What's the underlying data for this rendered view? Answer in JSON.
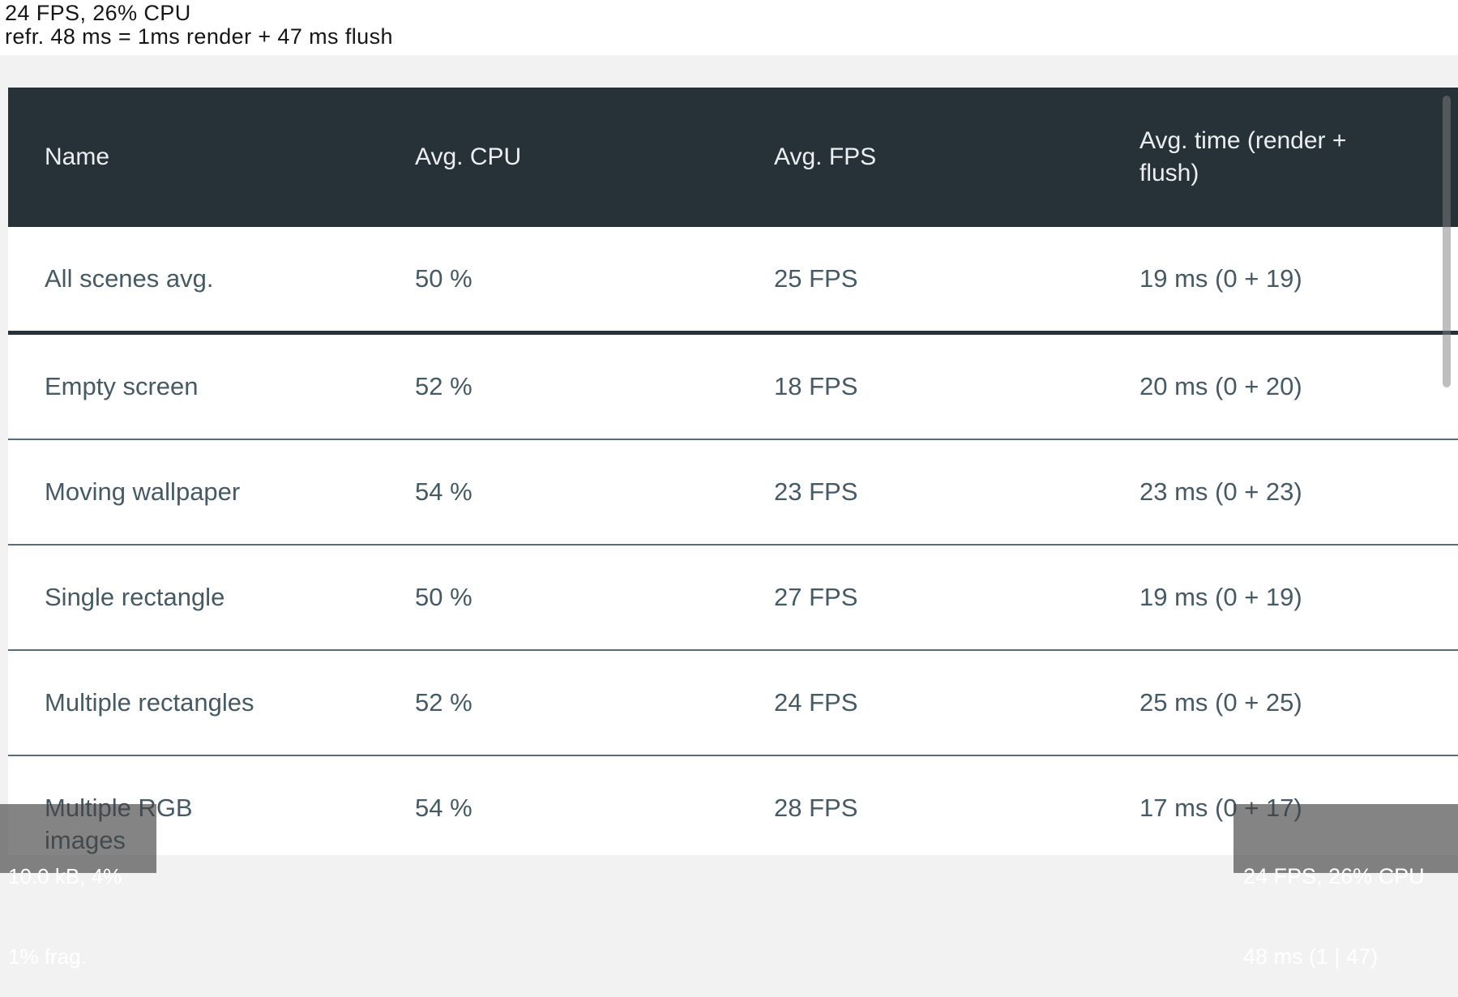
{
  "colors": {
    "page_bg": "#f2f2f2",
    "top_band_bg": "#ffffff",
    "header_bg": "#263238",
    "header_text": "#eceff1",
    "row_text": "#455a64",
    "thin_divider": "#546e7a",
    "strong_divider": "#263238",
    "overlay_bg_rgba": "rgba(66,66,66,0.65)",
    "overlay_text": "#ffffff"
  },
  "perf_text_top": {
    "line1": "24 FPS, 26% CPU",
    "line2": "refr. 48 ms = 1ms render + 47 ms flush"
  },
  "table": {
    "columns": {
      "name": "Name",
      "cpu": "Avg. CPU",
      "fps": "Avg. FPS",
      "time": "Avg. time (render +\nflush)"
    },
    "rows": [
      {
        "name": "All scenes avg.",
        "cpu": "50 %",
        "fps": "25 FPS",
        "time": "19 ms (0 + 19)"
      },
      {
        "name": "Empty screen",
        "cpu": "52 %",
        "fps": "18 FPS",
        "time": "20 ms (0 + 20)"
      },
      {
        "name": "Moving wallpaper",
        "cpu": "54 %",
        "fps": "23 FPS",
        "time": "23 ms (0 + 23)"
      },
      {
        "name": "Single rectangle",
        "cpu": "50 %",
        "fps": "27 FPS",
        "time": "19 ms (0 + 19)"
      },
      {
        "name": "Multiple rectangles",
        "cpu": "52 %",
        "fps": "24 FPS",
        "time": "25 ms (0 + 25)"
      },
      {
        "name": "Multiple RGB\nimages",
        "cpu": "54 %",
        "fps": "28 FPS",
        "time": "17 ms (0 + 17)"
      }
    ]
  },
  "overlay_bottom_left": {
    "line1": "10.0 kB, 4%",
    "line2": "1% frag."
  },
  "overlay_bottom_right": {
    "line1": "24 FPS, 26% CPU",
    "line2": "48 ms (1 | 47)"
  }
}
